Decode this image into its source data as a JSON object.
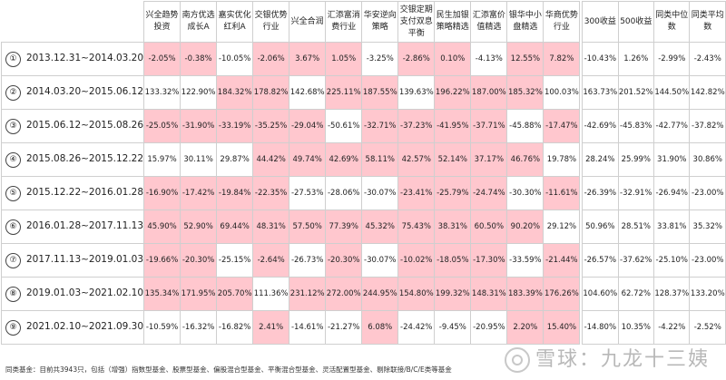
{
  "headers": [
    "兴全趋势投资",
    "南方优选成长A",
    "嘉实优化红利A",
    "交银优势行业",
    "兴全合润",
    "汇添富消费行业",
    "华安逆向策略",
    "交银定期支付双息平衡",
    "民生加银策略精选",
    "汇添富价值精选",
    "银华中小盘精选",
    "华商优势行业",
    "300收益",
    "500收益",
    "同类中位数",
    "同类平均数"
  ],
  "rows": [
    {
      "num": "①",
      "period": "2013.12.31~2014.03.20",
      "values": [
        "-2.05%",
        "-0.38%",
        "-10.05%",
        "-2.06%",
        "3.67%",
        "1.05%",
        "-3.25%",
        "-2.86%",
        "0.10%",
        "-4.13%",
        "12.55%",
        "7.82%",
        "-10.43%",
        "1.26%",
        "-2.99%",
        "-2.43%"
      ],
      "pink": [
        1,
        1,
        0,
        1,
        1,
        1,
        0,
        1,
        1,
        0,
        1,
        1
      ]
    },
    {
      "num": "②",
      "period": "2014.03.20~2015.06.12",
      "values": [
        "133.32%",
        "122.90%",
        "184.32%",
        "178.82%",
        "142.68%",
        "225.11%",
        "187.55%",
        "139.63%",
        "196.22%",
        "187.00%",
        "185.32%",
        "100.03%",
        "163.73%",
        "201.52%",
        "144.50%",
        "142.82%"
      ],
      "pink": [
        0,
        0,
        1,
        1,
        0,
        1,
        1,
        0,
        1,
        1,
        1,
        0
      ]
    },
    {
      "num": "③",
      "period": "2015.06.12~2015.08.26",
      "values": [
        "-25.05%",
        "-31.90%",
        "-33.19%",
        "-35.25%",
        "-29.04%",
        "-50.61%",
        "-32.71%",
        "-37.23%",
        "-41.95%",
        "-37.71%",
        "-45.88%",
        "-17.47%",
        "-42.69%",
        "-45.83%",
        "-42.77%",
        "-37.82%"
      ],
      "pink": [
        1,
        1,
        1,
        1,
        1,
        0,
        1,
        1,
        1,
        1,
        0,
        1
      ]
    },
    {
      "num": "④",
      "period": "2015.08.26~2015.12.22",
      "values": [
        "15.97%",
        "30.11%",
        "29.87%",
        "44.42%",
        "49.74%",
        "42.69%",
        "58.11%",
        "42.57%",
        "52.14%",
        "37.17%",
        "46.76%",
        "19.78%",
        "28.24%",
        "25.99%",
        "31.90%",
        "30.86%"
      ],
      "pink": [
        0,
        0,
        0,
        1,
        1,
        1,
        1,
        1,
        1,
        1,
        1,
        0
      ]
    },
    {
      "num": "⑤",
      "period": "2015.12.22~2016.01.28",
      "values": [
        "-16.90%",
        "-17.42%",
        "-19.84%",
        "-22.35%",
        "-27.53%",
        "-28.06%",
        "-30.07%",
        "-23.41%",
        "-25.79%",
        "-24.74%",
        "-30.30%",
        "-11.61%",
        "-26.39%",
        "-32.91%",
        "-26.94%",
        "-23.00%"
      ],
      "pink": [
        1,
        1,
        1,
        1,
        0,
        0,
        0,
        1,
        1,
        1,
        0,
        1
      ]
    },
    {
      "num": "⑥",
      "period": "2016.01.28~2017.11.13",
      "values": [
        "45.90%",
        "52.90%",
        "69.44%",
        "48.31%",
        "57.50%",
        "77.39%",
        "45.32%",
        "75.43%",
        "38.31%",
        "60.50%",
        "90.20%",
        "29.12%",
        "50.96%",
        "28.51%",
        "33.81%",
        "35.32%"
      ],
      "pink": [
        1,
        1,
        1,
        1,
        1,
        1,
        1,
        1,
        1,
        1,
        1,
        0
      ]
    },
    {
      "num": "⑦",
      "period": "2017.11.13~2019.01.03",
      "values": [
        "-19.66%",
        "-20.30%",
        "-25.15%",
        "-2.64%",
        "-26.73%",
        "-20.30%",
        "-30.07%",
        "-10.02%",
        "-18.05%",
        "-17.30%",
        "-33.59%",
        "-21.44%",
        "-26.57%",
        "-37.62%",
        "-25.10%",
        "-23.00%"
      ],
      "pink": [
        1,
        1,
        0,
        1,
        0,
        1,
        0,
        1,
        1,
        1,
        0,
        1
      ]
    },
    {
      "num": "⑧",
      "period": "2019.01.03~2021.02.10",
      "values": [
        "135.34%",
        "171.95%",
        "205.70%",
        "111.36%",
        "231.12%",
        "272.00%",
        "244.95%",
        "154.80%",
        "199.32%",
        "148.31%",
        "183.39%",
        "176.26%",
        "104.60%",
        "62.72%",
        "128.37%",
        "133.20%"
      ],
      "pink": [
        1,
        1,
        1,
        0,
        1,
        1,
        1,
        1,
        1,
        1,
        1,
        1
      ]
    },
    {
      "num": "⑨",
      "period": "2021.02.10~2021.09.30",
      "values": [
        "-10.59%",
        "-16.32%",
        "-16.82%",
        "2.41%",
        "-14.61%",
        "-21.27%",
        "6.08%",
        "-24.42%",
        "-9.45%",
        "-20.95%",
        "2.20%",
        "15.40%",
        "-14.80%",
        "10.35%",
        "-4.22%",
        "-2.52%"
      ],
      "pink": [
        0,
        0,
        0,
        1,
        0,
        0,
        1,
        0,
        0,
        0,
        1,
        1
      ]
    }
  ],
  "footnote": "同类基金：目前共3943只，包括（增强）指数型基金、股票型基金、偏股混合型基金、平衡混合型基金、灵活配置型基金、剔除联接/B/C/E类等基金",
  "watermark": "雪球：九龙十三姨",
  "colors": {
    "highlight": "#ffc7ce",
    "border": "#cfcfcf"
  }
}
